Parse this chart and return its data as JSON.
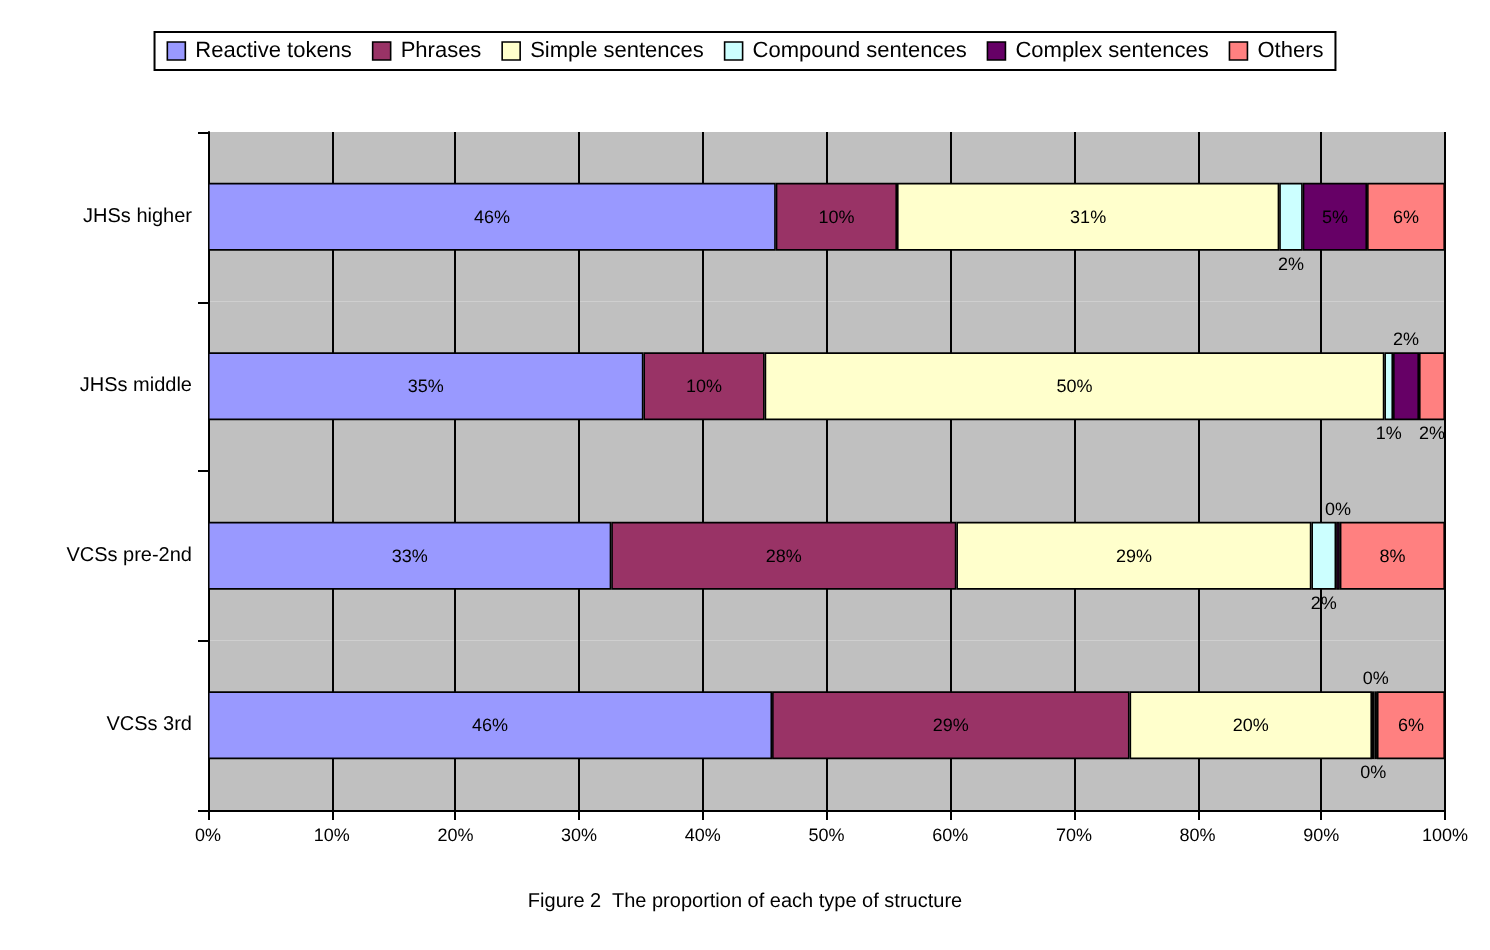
{
  "chart_data": {
    "type": "bar",
    "orientation": "horizontal",
    "stacked": true,
    "title": "Figure 2  The proportion of each type of structure",
    "categories": [
      "JHSs higher",
      "JHSs middle",
      "VCSs pre-2nd",
      "VCSs 3rd"
    ],
    "series": [
      {
        "name": "Reactive tokens",
        "color": "#9999ff",
        "values": [
          45.9,
          35.2,
          32.6,
          45.6
        ],
        "value_labels": [
          "46%",
          "35%",
          "33%",
          "46%"
        ]
      },
      {
        "name": "Phrases",
        "color": "#993366",
        "values": [
          9.8,
          9.8,
          27.9,
          28.9
        ],
        "value_labels": [
          "10%",
          "10%",
          "28%",
          "29%"
        ]
      },
      {
        "name": "Simple sentences",
        "color": "#ffffcc",
        "values": [
          30.9,
          50.1,
          28.7,
          19.6
        ],
        "value_labels": [
          "31%",
          "50%",
          "29%",
          "20%"
        ]
      },
      {
        "name": "Compound sentences",
        "color": "#ccffff",
        "values": [
          1.9,
          0.7,
          2.0,
          0.2
        ],
        "value_labels": [
          "2%",
          "1%",
          "2%",
          "0%"
        ]
      },
      {
        "name": "Complex sentences",
        "color": "#660066",
        "values": [
          5.2,
          2.1,
          0.3,
          0.2
        ],
        "value_labels": [
          "5%",
          "2%",
          "0%",
          "0%"
        ]
      },
      {
        "name": "Others",
        "color": "#ff8080",
        "values": [
          6.3,
          2.1,
          8.5,
          5.5
        ],
        "value_labels": [
          "6%",
          "2%",
          "8%",
          "6%"
        ]
      }
    ],
    "xlim": [
      0,
      100
    ],
    "xticks": [
      {
        "value": 0,
        "label": "0%"
      },
      {
        "value": 10,
        "label": "10%"
      },
      {
        "value": 20,
        "label": "20%"
      },
      {
        "value": 30,
        "label": "30%"
      },
      {
        "value": 40,
        "label": "40%"
      },
      {
        "value": 50,
        "label": "50%"
      },
      {
        "value": 60,
        "label": "60%"
      },
      {
        "value": 70,
        "label": "70%"
      },
      {
        "value": 80,
        "label": "80%"
      },
      {
        "value": 90,
        "label": "90%"
      },
      {
        "value": 100,
        "label": "100%"
      }
    ],
    "grid": "x",
    "legend": "top"
  }
}
